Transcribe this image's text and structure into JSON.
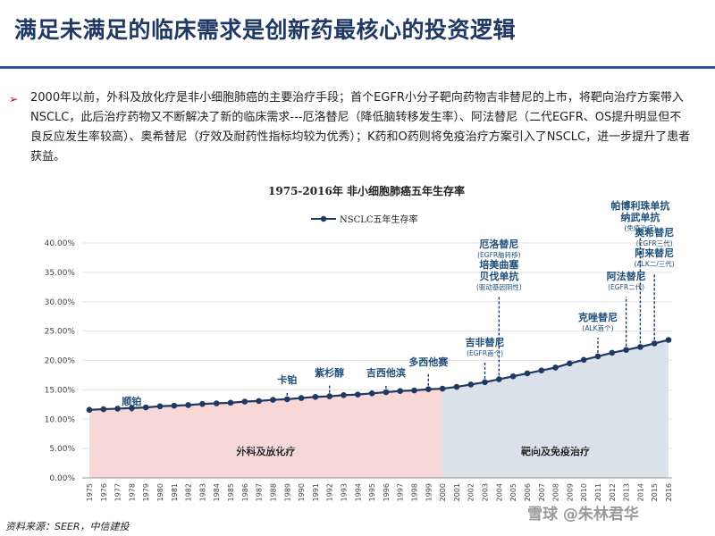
{
  "header": {
    "title": "满足未满足的临床需求是创新药最核心的投资逻辑"
  },
  "intro": {
    "bullet": "➢",
    "text": "2000年以前，外科及放化疗是非小细胞肺癌的主要治疗手段；首个EGFR小分子靶向药物吉非替尼的上市，将靶向治疗方案带入NSCLC，此后治疗药物又不断解决了新的临床需求---厄洛替尼（降低脑转移发生率）、阿法替尼（二代EGFR、OS提升明显但不良反应发生率较高）、奥希替尼（疗效及耐药性指标均较为优秀）；K药和O药则将免疫治疗方案引入了NSCLC，进一步提升了患者获益。"
  },
  "chart_data": {
    "type": "line",
    "title": "1975-2016年 非小细胞肺癌五年生存率",
    "legend": {
      "label": "NSCLC五年生存率",
      "placement": "top-center"
    },
    "x": [
      1975,
      1976,
      1977,
      1978,
      1979,
      1980,
      1981,
      1982,
      1983,
      1984,
      1985,
      1986,
      1987,
      1988,
      1989,
      1990,
      1991,
      1992,
      1993,
      1994,
      1995,
      1996,
      1997,
      1998,
      1999,
      2000,
      2001,
      2002,
      2003,
      2004,
      2005,
      2006,
      2007,
      2008,
      2009,
      2010,
      2011,
      2012,
      2013,
      2014,
      2015,
      2016
    ],
    "xticks": [
      "1975",
      "1976",
      "1977",
      "1978",
      "1979",
      "1980",
      "1981",
      "1982",
      "1983",
      "1984",
      "1985",
      "1986",
      "1987",
      "1988",
      "1989",
      "1990",
      "1991",
      "1992",
      "1993",
      "1994",
      "1995",
      "1996",
      "1997",
      "1998",
      "1999",
      "2000",
      "2001",
      "2002",
      "2003",
      "2004",
      "2005",
      "2006",
      "2007",
      "2008",
      "2009",
      "2010",
      "2011",
      "2012",
      "2013",
      "2014",
      "2015",
      "2016"
    ],
    "series": [
      {
        "name": "NSCLC五年生存率",
        "color": "#1f3864",
        "values": [
          11.6,
          11.7,
          11.8,
          11.9,
          12.0,
          12.2,
          12.3,
          12.4,
          12.6,
          12.7,
          12.8,
          13.0,
          13.1,
          13.3,
          13.4,
          13.6,
          13.8,
          13.9,
          14.1,
          14.2,
          14.4,
          14.6,
          14.8,
          14.9,
          15.1,
          15.2,
          15.5,
          15.9,
          16.3,
          16.8,
          17.3,
          17.8,
          18.3,
          18.8,
          19.5,
          20.1,
          20.7,
          21.3,
          21.8,
          22.3,
          22.9,
          23.5
        ]
      }
    ],
    "ylim": [
      0,
      40
    ],
    "yticks": [
      "0.00%",
      "5.00%",
      "10.00%",
      "15.00%",
      "20.00%",
      "25.00%",
      "30.00%",
      "35.00%",
      "40.00%"
    ],
    "regions": [
      {
        "label": "外科及放化疗",
        "from": 1975,
        "to": 2000,
        "color": "#f8d7d7"
      },
      {
        "label": "靶向及免疫治疗",
        "from": 2000,
        "to": 2016,
        "color": "#d9e1ea"
      }
    ],
    "annotations": [
      {
        "year": 1978,
        "lines": [
          "顺铂"
        ]
      },
      {
        "year": 1989,
        "lines": [
          "卡铂"
        ]
      },
      {
        "year": 1992,
        "lines": [
          "紫杉醇"
        ]
      },
      {
        "year": 1996,
        "lines": [
          "吉西他滨"
        ]
      },
      {
        "year": 1999,
        "lines": [
          "多西他赛"
        ]
      },
      {
        "year": 2003,
        "lines": [
          "吉非替尼"
        ],
        "sub": [
          "(EGFR首个)"
        ]
      },
      {
        "year": 2004,
        "lines": [
          "厄洛替尼"
        ],
        "sub": [
          "(EGFR脑转移)"
        ],
        "lines2": [
          "培美曲塞",
          "贝伐单抗"
        ],
        "sub2": [
          "(驱动基因阴性)"
        ]
      },
      {
        "year": 2011,
        "lines": [
          "克唑替尼"
        ],
        "sub": [
          "(ALK首个)"
        ]
      },
      {
        "year": 2013,
        "lines": [
          "阿法替尼"
        ],
        "sub": [
          "(EGFR二代)"
        ]
      },
      {
        "year": 2014,
        "lines": [
          "帕博利珠单抗",
          "纳武单抗"
        ],
        "sub": [
          "(免疫治疗)"
        ]
      },
      {
        "year": 2015,
        "lines": [
          "奥希替尼"
        ],
        "sub": [
          "(EGFR三代)"
        ],
        "lines2": [
          "阿来替尼"
        ],
        "sub2": [
          "(ALK二/三代)"
        ]
      }
    ]
  },
  "footer": {
    "source": "资料来源：SEER，中信建投",
    "watermark": "雪球 @朱林君华"
  }
}
